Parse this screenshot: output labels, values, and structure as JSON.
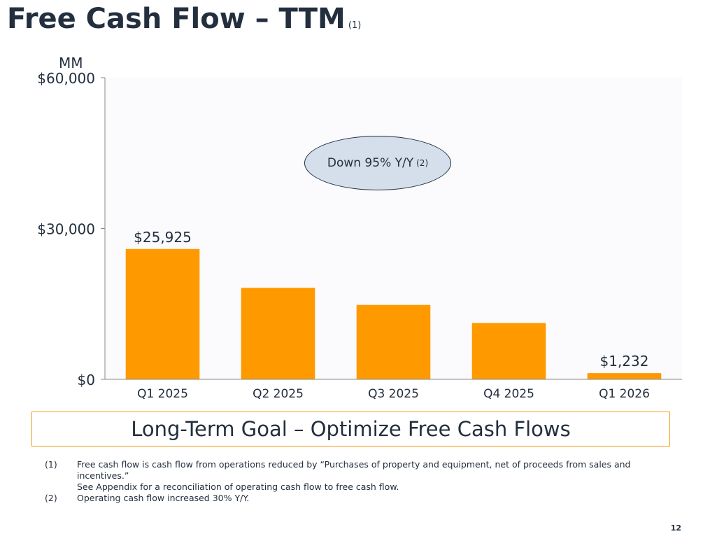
{
  "title": "Free Cash Flow – TTM",
  "title_note": "(1)",
  "unit_label": "MM",
  "callout": {
    "text": "Down 95% Y/Y",
    "note": "(2)"
  },
  "goal_text": "Long-Term Goal – Optimize Free Cash Flows",
  "footnotes": [
    {
      "num": "(1)",
      "lines": [
        "Free cash flow is cash flow from operations reduced by “Purchases of property and equipment, net of proceeds from sales and incentives.”",
        "See Appendix for a reconciliation of operating cash flow to free cash flow."
      ]
    },
    {
      "num": "(2)",
      "lines": [
        "Operating cash flow increased 30% Y/Y."
      ]
    }
  ],
  "page_number": "12",
  "colors": {
    "bar": "#ff9900",
    "text": "#232f3e",
    "callout_fill": "#d5dfec",
    "goal_border": "#f49b1a"
  },
  "chart_data": {
    "type": "bar",
    "categories": [
      "Q1 2025",
      "Q2 2025",
      "Q3 2025",
      "Q4 2025",
      "Q1 2026"
    ],
    "values": [
      25925,
      18200,
      14800,
      11200,
      1232
    ],
    "data_labels": [
      "$25,925",
      "",
      "",
      "",
      "$1,232"
    ],
    "yticks": [
      0,
      30000,
      60000
    ],
    "ytick_labels": [
      "$0",
      "$30,000",
      "$60,000"
    ],
    "ylim": [
      0,
      60000
    ],
    "ylabel": "MM",
    "grid": false
  }
}
